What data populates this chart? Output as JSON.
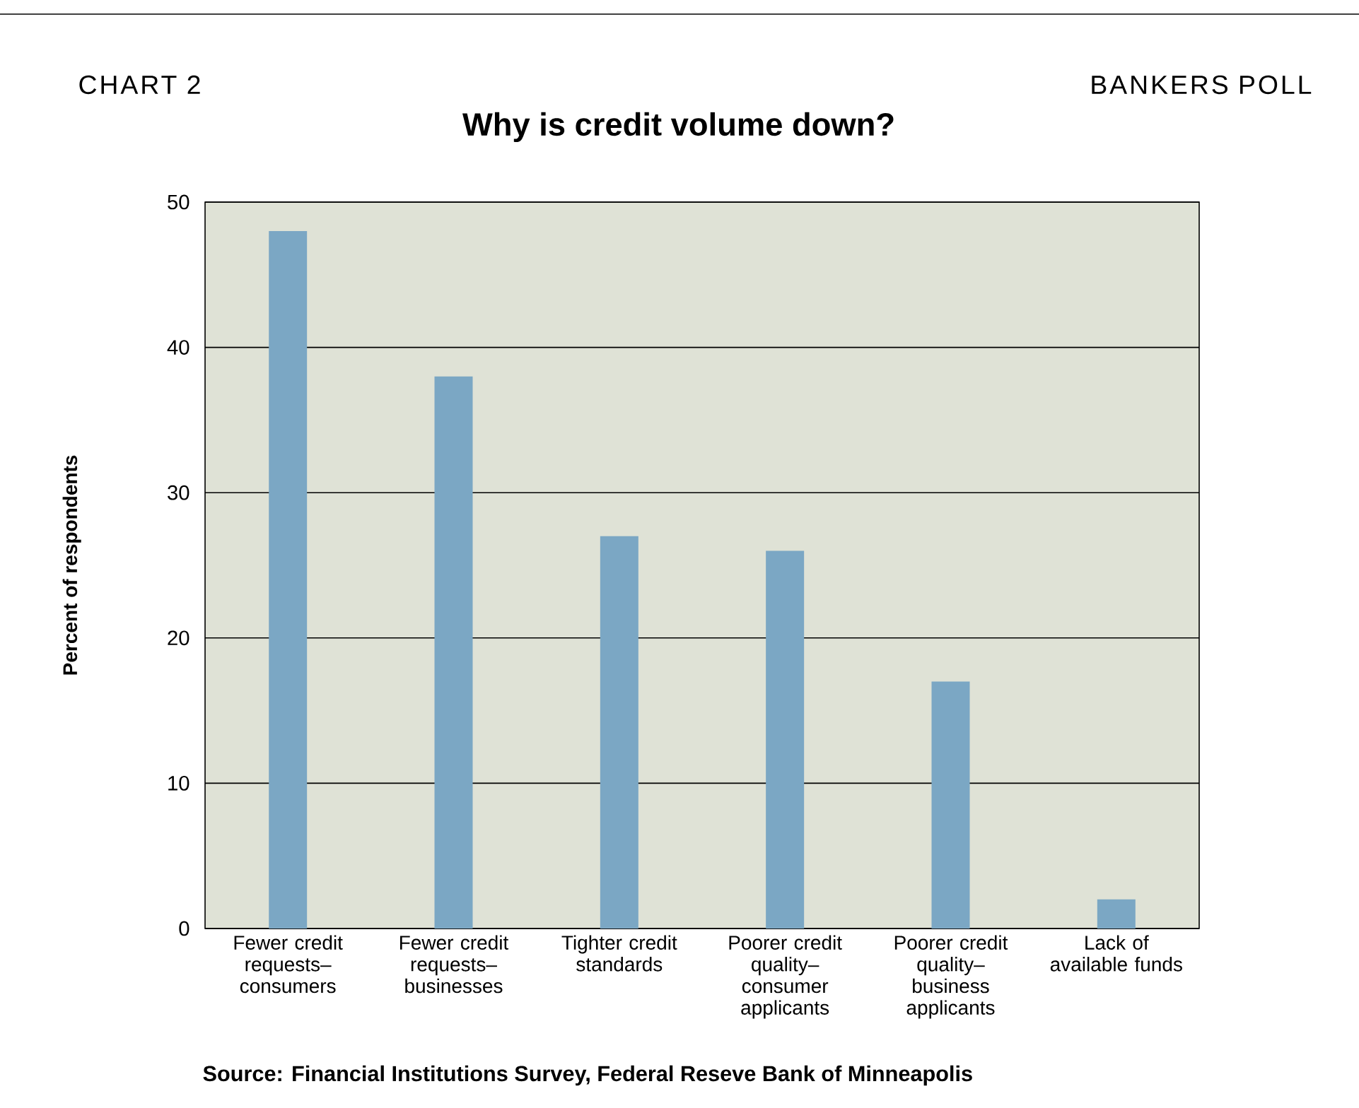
{
  "chart_data": {
    "type": "bar",
    "title": "Why is credit volume down?",
    "ylabel": "Percent of respondents",
    "categories": [
      "Fewer credit requests– consumers",
      "Fewer credit requests– businesses",
      "Tighter credit standards",
      "Poorer credit quality– consumer applicants",
      "Poorer credit quality– business applicants",
      "Lack of available funds"
    ],
    "values": [
      48,
      38,
      27,
      26,
      17,
      2
    ],
    "color": "#7ba7c4",
    "ylim": [
      0,
      50
    ],
    "yticks": [
      0,
      10,
      20,
      30,
      40,
      50
    ],
    "grid": "y",
    "annotations": [
      "CHART 2",
      "BANKERS POLL",
      "Source: Financial Institutions Survey, Federal Reseve Bank of Minneapolis"
    ]
  }
}
